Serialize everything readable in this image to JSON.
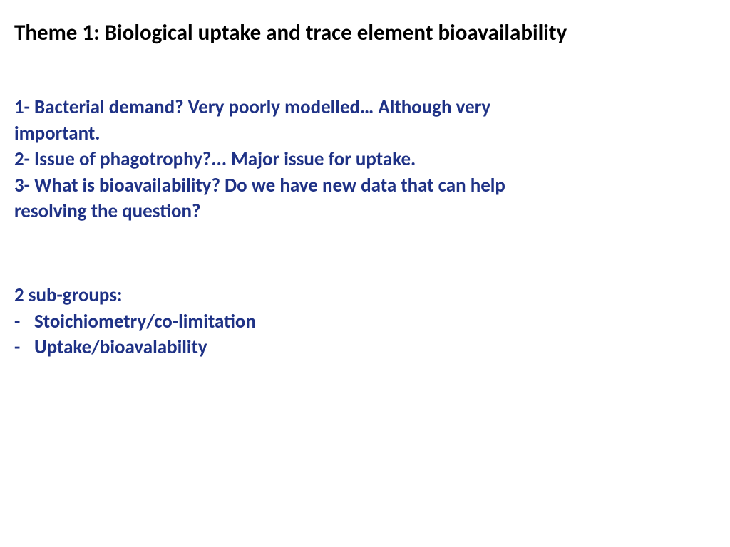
{
  "title": "Theme 1: Biological uptake and trace element bioavailability",
  "questions": {
    "line1": "1- Bacterial demand? Very poorly modelled… Although very",
    "line2": "important.",
    "line3": "2- Issue of phagotrophy?... Major issue for uptake.",
    "line4": "3- What is bioavailability? Do we have new data that can help",
    "line5": "resolving the question?"
  },
  "subgroups": {
    "header": "2 sub-groups:",
    "items": [
      "Stoichiometry/co-limitation",
      "Uptake/bioavalability"
    ]
  },
  "colors": {
    "title_color": "#000000",
    "body_color": "#1f3286",
    "background": "#ffffff"
  },
  "typography": {
    "title_fontsize": 31,
    "body_fontsize": 27,
    "font_weight": "bold",
    "font_family": "Calibri"
  }
}
